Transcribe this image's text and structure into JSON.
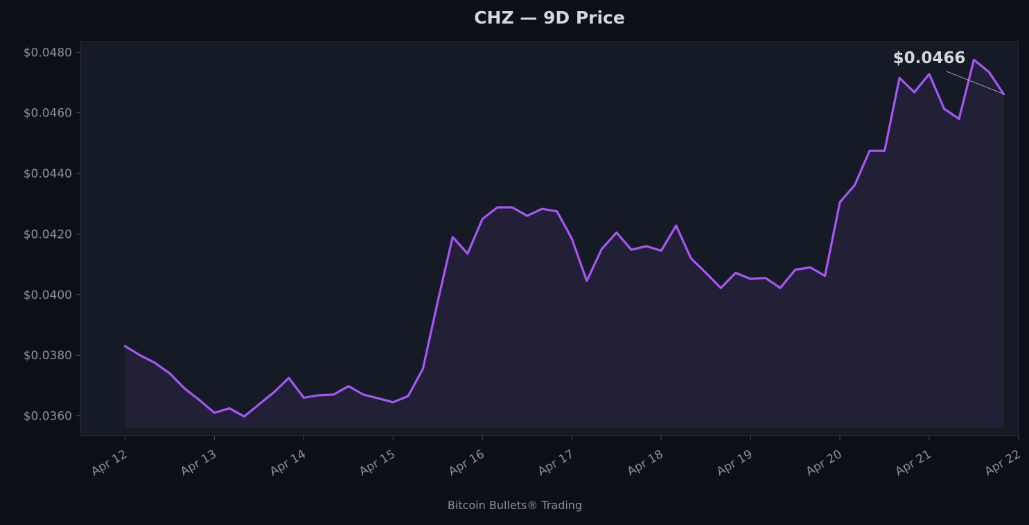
{
  "chart_data": {
    "type": "line",
    "title": "CHZ — 9D Price",
    "footer": "Bitcoin Bullets® Trading",
    "xlabel": "",
    "ylabel": "",
    "x_ticks": [
      "Apr 12",
      "Apr 13",
      "Apr 14",
      "Apr 15",
      "Apr 16",
      "Apr 17",
      "Apr 18",
      "Apr 19",
      "Apr 20",
      "Apr 21",
      "Apr 22"
    ],
    "y_ticks": [
      "$0.0360",
      "$0.0380",
      "$0.0400",
      "$0.0420",
      "$0.0440",
      "$0.0460",
      "$0.0480"
    ],
    "xlim_days": [
      11.5,
      22.0
    ],
    "ylim": [
      0.03535,
      0.04835
    ],
    "grid": false,
    "last_value_label": "$0.0466",
    "series": [
      {
        "color": "#a855f7",
        "x": [
          12.0,
          12.167,
          12.333,
          12.5,
          12.667,
          12.833,
          13.0,
          13.167,
          13.333,
          13.5,
          13.667,
          13.833,
          14.0,
          14.167,
          14.333,
          14.5,
          14.667,
          14.833,
          15.0,
          15.167,
          15.333,
          15.5,
          15.667,
          15.833,
          16.0,
          16.167,
          16.333,
          16.5,
          16.667,
          16.833,
          17.0,
          17.167,
          17.333,
          17.5,
          17.667,
          17.833,
          18.0,
          18.167,
          18.333,
          18.5,
          18.667,
          18.833,
          19.0,
          19.167,
          19.333,
          19.5,
          19.667,
          19.833,
          20.0,
          20.167,
          20.333,
          20.5,
          20.667,
          20.833,
          21.0,
          21.167,
          21.333,
          21.5,
          21.667,
          21.833
        ],
        "values": [
          0.0383,
          0.038,
          0.03775,
          0.0374,
          0.0369,
          0.03652,
          0.0361,
          0.03625,
          0.03598,
          0.03638,
          0.03678,
          0.03725,
          0.0366,
          0.03668,
          0.0367,
          0.03698,
          0.0367,
          0.03658,
          0.03645,
          0.03665,
          0.03755,
          0.03978,
          0.0419,
          0.04135,
          0.0425,
          0.04288,
          0.04288,
          0.0426,
          0.04283,
          0.04275,
          0.04185,
          0.04045,
          0.0415,
          0.04205,
          0.04148,
          0.0416,
          0.04145,
          0.04228,
          0.0412,
          0.04072,
          0.04022,
          0.04072,
          0.04052,
          0.04055,
          0.04022,
          0.04082,
          0.0409,
          0.04062,
          0.04305,
          0.04362,
          0.04475,
          0.04475,
          0.04715,
          0.04668,
          0.04728,
          0.04613,
          0.0458,
          0.04775,
          0.04735,
          0.04662
        ]
      }
    ]
  }
}
